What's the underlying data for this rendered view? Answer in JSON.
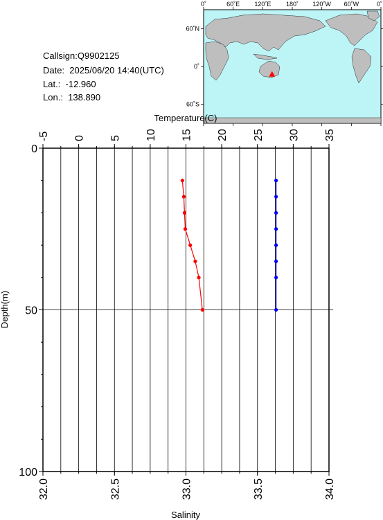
{
  "station": {
    "callsign_text": "Callsign:Q9902125",
    "date_text": "Date:  2025/06/20 14:40(UTC)",
    "lat_text": "Lat.:  -12.960",
    "lon_text": "Lon.:  138.890"
  },
  "map": {
    "top_labels": [
      "0˚",
      "60˚E",
      "120˚E",
      "180˚",
      "120˚W",
      "60˚W",
      "0˚"
    ],
    "left_labels": [
      "60˚N",
      "0˚",
      "60˚S"
    ],
    "ocean_color": "#bdf4f6",
    "land_color": "#bebebe",
    "marker_color": "#ff0000",
    "marker": {
      "lon": 138.89,
      "lat": -12.96
    }
  },
  "chart_data": {
    "type": "line",
    "top_axis": {
      "label": "Temperature(C)",
      "range": [
        -5,
        35
      ],
      "ticks": [
        -5,
        0,
        5,
        10,
        15,
        20,
        25,
        30,
        35
      ]
    },
    "bottom_axis": {
      "label": "Salinity",
      "range": [
        32.0,
        34.0
      ],
      "ticks": [
        "32.0",
        "32.5",
        "33.0",
        "33.5",
        "34.0"
      ]
    },
    "y_axis": {
      "label": "Depth(m)",
      "range": [
        0,
        100
      ],
      "inverted": true,
      "ticks": [
        0,
        50,
        100
      ]
    },
    "grid": true,
    "series": [
      {
        "axis": "temperature",
        "color": "#ff0000",
        "depth": [
          10,
          15,
          20,
          25,
          30,
          35,
          40,
          50
        ],
        "values": [
          14.5,
          14.7,
          14.8,
          14.9,
          15.6,
          16.3,
          16.8,
          17.3
        ]
      },
      {
        "axis": "salinity",
        "color": "#0000ff",
        "depth": [
          10,
          15,
          20,
          25,
          30,
          35,
          40,
          50
        ],
        "values": [
          33.63,
          33.63,
          33.63,
          33.63,
          33.63,
          33.63,
          33.63,
          33.63
        ]
      }
    ]
  }
}
